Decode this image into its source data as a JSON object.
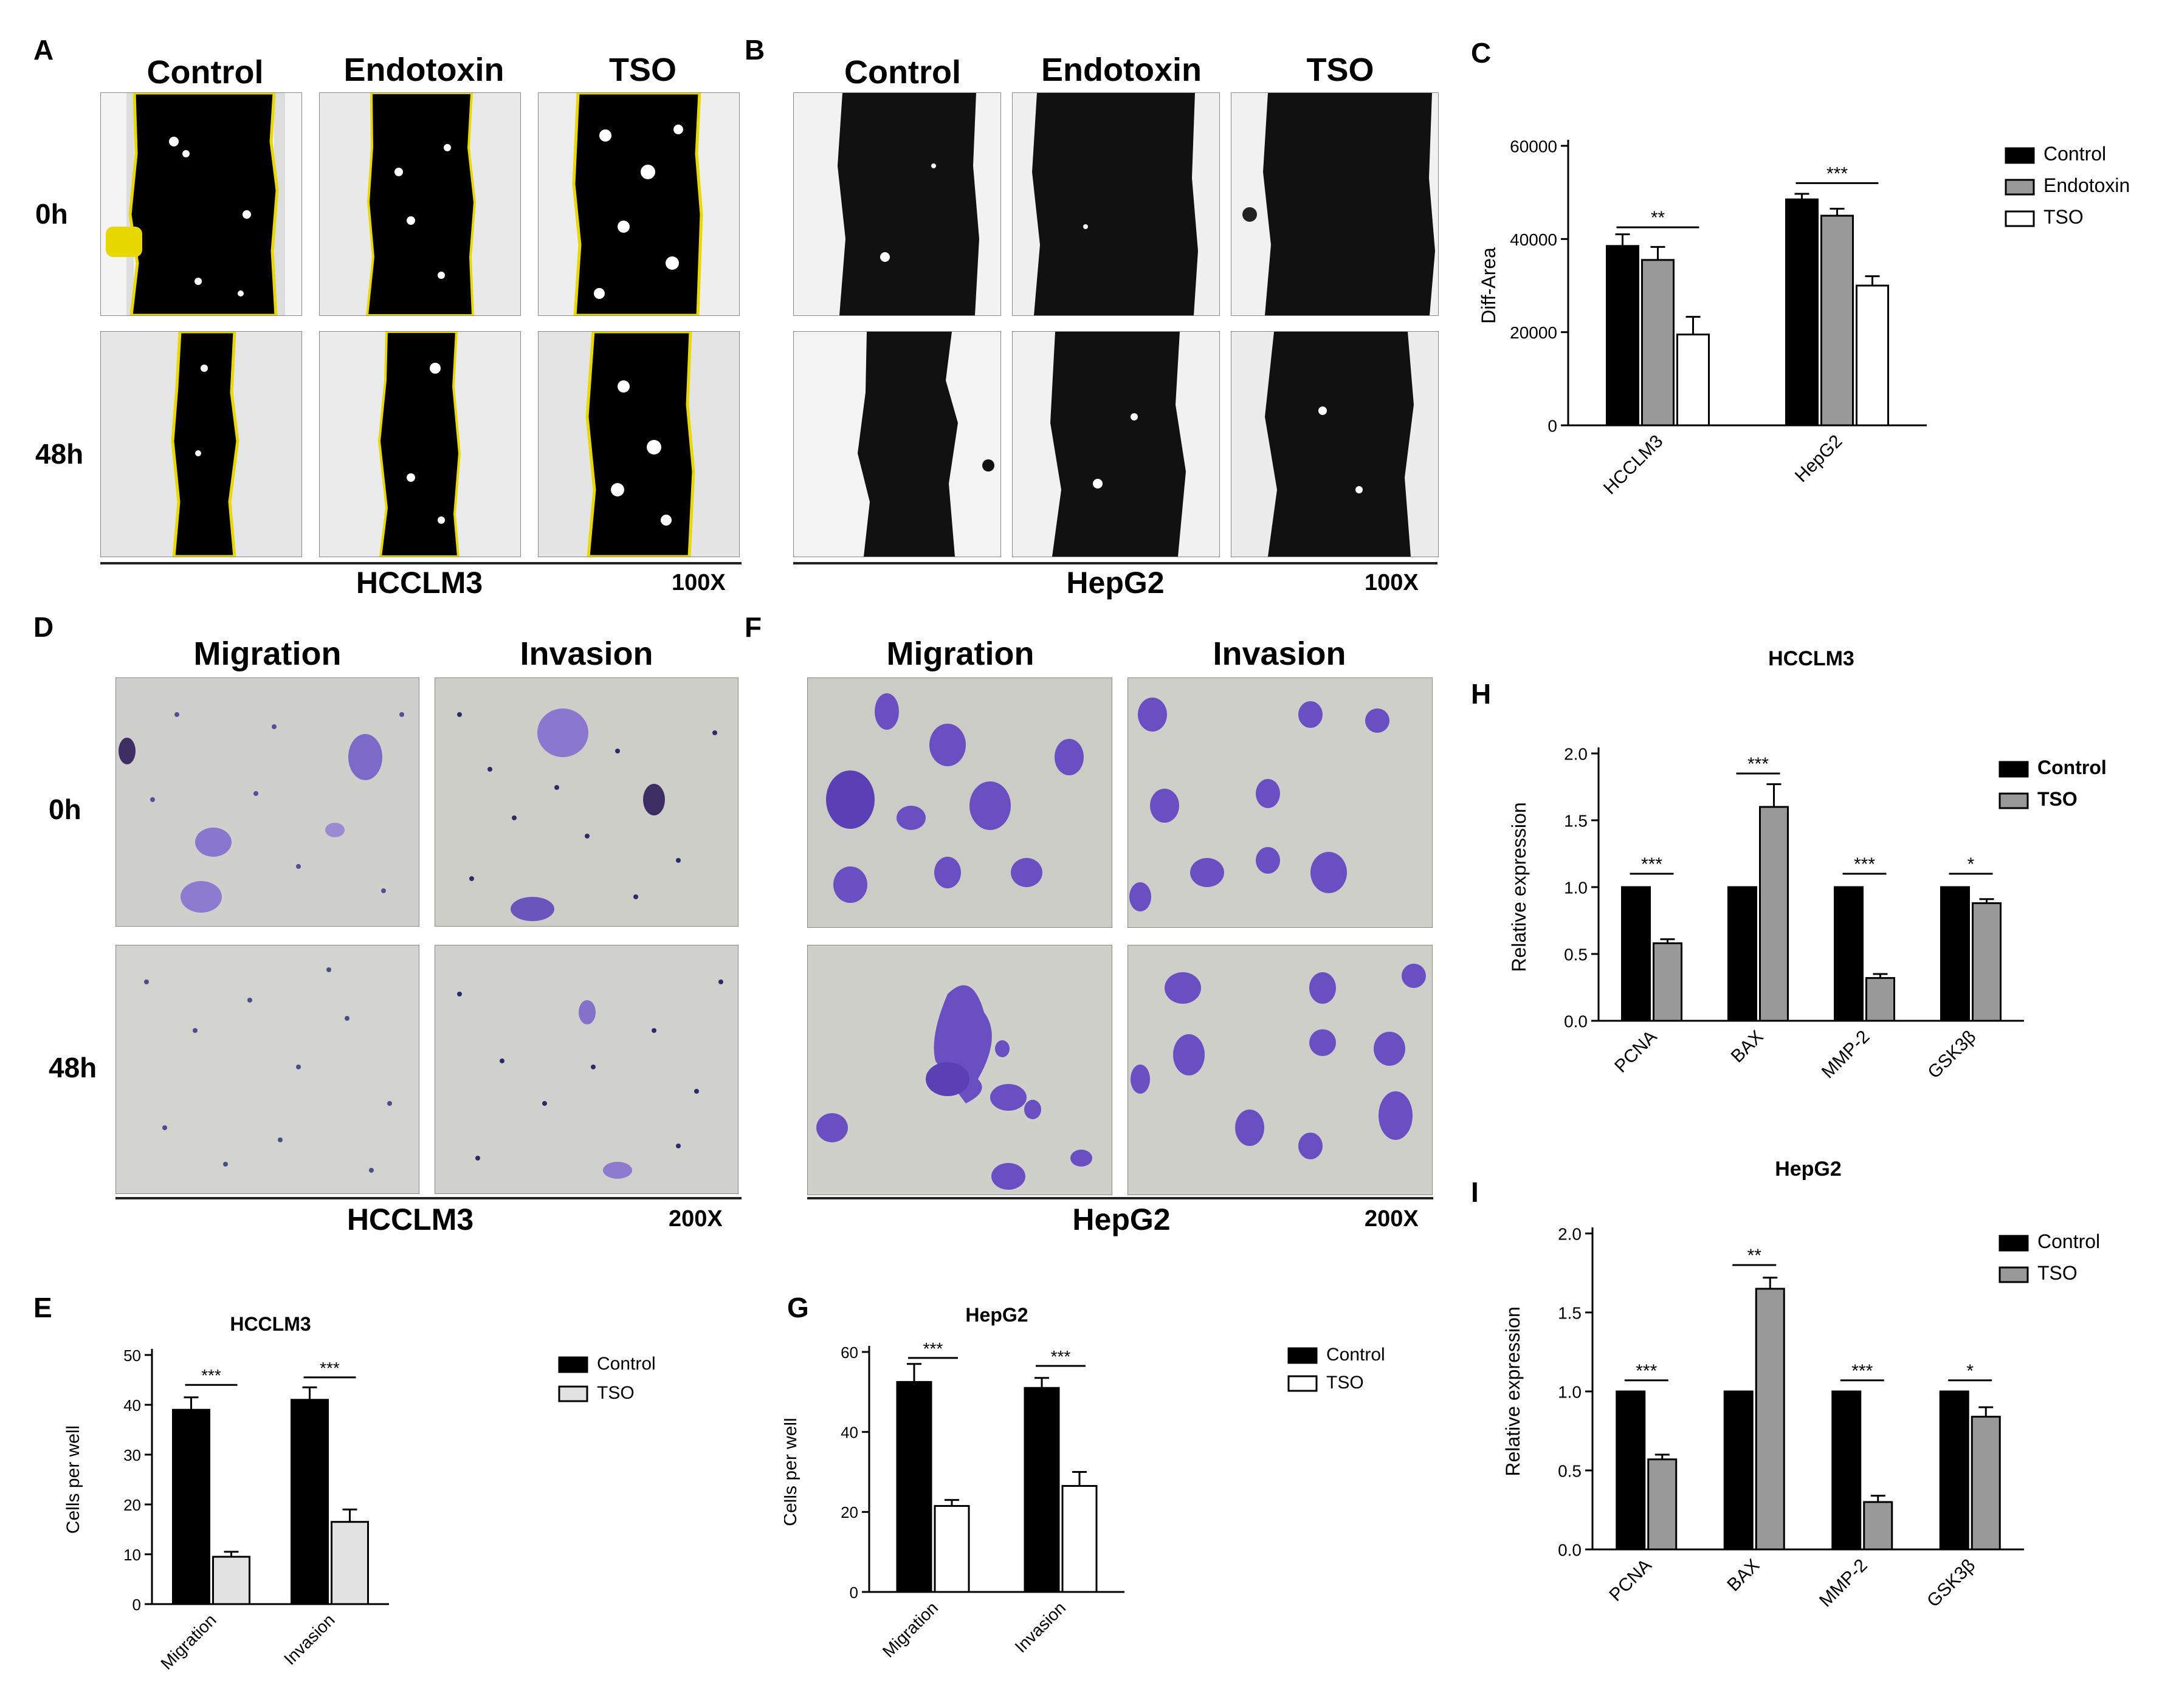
{
  "panels": {
    "A": {
      "letter": "A",
      "cols": [
        "Control",
        "Endotoxin",
        "TSO"
      ],
      "rows": [
        "0h",
        "48h"
      ],
      "cell": "HCCLM3",
      "mag": "100X"
    },
    "B": {
      "letter": "B",
      "cols": [
        "Control",
        "Endotoxin",
        "TSO"
      ],
      "cell": "HepG2",
      "mag": "100X"
    },
    "C": {
      "letter": "C"
    },
    "D": {
      "letter": "D",
      "cols": [
        "Migration",
        "Invasion"
      ],
      "rows": [
        "0h",
        "48h"
      ],
      "cell": "HCCLM3",
      "mag": "200X"
    },
    "F": {
      "letter": "F",
      "cols": [
        "Migration",
        "Invasion"
      ],
      "cell": "HepG2",
      "mag": "200X"
    },
    "E": {
      "letter": "E"
    },
    "G": {
      "letter": "G"
    },
    "H": {
      "letter": "H"
    },
    "I": {
      "letter": "I"
    }
  },
  "colors": {
    "control": "#000000",
    "grey": "#999999",
    "light": "#e2e2e2",
    "white": "#ffffff",
    "stain": "#6a4fc2",
    "wound": "#000000",
    "edge": "#e8d800"
  },
  "chart_data": [
    {
      "id": "C",
      "type": "bar",
      "title": "",
      "ylabel": "Diff-Area",
      "xlabel": "",
      "categories": [
        "HCCLM3",
        "HepG2"
      ],
      "yticks": [
        "0",
        "20000",
        "40000",
        "60000"
      ],
      "ylim": [
        0,
        60000
      ],
      "series": [
        {
          "name": "Control",
          "color": "#000000",
          "values": [
            38500,
            48500
          ],
          "errors": [
            2500,
            1200
          ]
        },
        {
          "name": "Endotoxin",
          "color": "#999999",
          "values": [
            35500,
            45000
          ],
          "errors": [
            2800,
            1500
          ]
        },
        {
          "name": "TSO",
          "color": "#ffffff",
          "values": [
            19500,
            30000
          ],
          "errors": [
            3800,
            2000
          ]
        }
      ],
      "significance": [
        {
          "label": "**",
          "cat": 0,
          "from": 0,
          "to": 2,
          "y": 42500
        },
        {
          "label": "***",
          "cat": 1,
          "from": 0,
          "to": 2,
          "y": 52000
        }
      ],
      "legend": "right"
    },
    {
      "id": "E",
      "type": "bar",
      "title": "HCCLM3",
      "ylabel": "Cells per well",
      "xlabel": "",
      "categories": [
        "Migration",
        "Invasion"
      ],
      "yticks": [
        "0",
        "10",
        "20",
        "30",
        "40",
        "50"
      ],
      "ylim": [
        0,
        50
      ],
      "series": [
        {
          "name": "Control",
          "color": "#000000",
          "values": [
            39,
            41
          ],
          "errors": [
            2.5,
            2.5
          ]
        },
        {
          "name": "TSO",
          "color": "#e2e2e2",
          "values": [
            9.5,
            16.5
          ],
          "errors": [
            1,
            2.5
          ]
        }
      ],
      "significance": [
        {
          "label": "***",
          "cat": 0,
          "from": 0,
          "to": 1,
          "y": 44
        },
        {
          "label": "***",
          "cat": 1,
          "from": 0,
          "to": 1,
          "y": 45.5
        }
      ],
      "legend": "right"
    },
    {
      "id": "G",
      "type": "bar",
      "title": "HepG2",
      "ylabel": "Cells per well",
      "xlabel": "",
      "categories": [
        "Migration",
        "Invasion"
      ],
      "yticks": [
        "0",
        "20",
        "40",
        "60"
      ],
      "ylim": [
        0,
        60
      ],
      "series": [
        {
          "name": "Control",
          "color": "#000000",
          "values": [
            52.5,
            51
          ],
          "errors": [
            4.5,
            2.5
          ]
        },
        {
          "name": "TSO",
          "color": "#ffffff",
          "values": [
            21.5,
            26.5
          ],
          "errors": [
            1.5,
            3.5
          ]
        }
      ],
      "significance": [
        {
          "label": "***",
          "cat": 0,
          "from": 0,
          "to": 1,
          "y": 58.5
        },
        {
          "label": "***",
          "cat": 1,
          "from": 0,
          "to": 1,
          "y": 56.5
        }
      ],
      "legend": "right"
    },
    {
      "id": "H",
      "type": "bar",
      "title": "HCCLM3",
      "ylabel": "Relative expression",
      "xlabel": "",
      "categories": [
        "PCNA",
        "BAX",
        "MMP-2",
        "GSK3β"
      ],
      "yticks": [
        "0.0",
        "0.5",
        "1.0",
        "1.5",
        "2.0"
      ],
      "ylim": [
        0,
        2.0
      ],
      "series": [
        {
          "name": "Control",
          "color": "#000000",
          "values": [
            1.0,
            1.0,
            1.0,
            1.0
          ],
          "errors": [
            0,
            0,
            0,
            0
          ]
        },
        {
          "name": "TSO",
          "color": "#999999",
          "values": [
            0.58,
            1.6,
            0.32,
            0.88
          ],
          "errors": [
            0.03,
            0.17,
            0.03,
            0.03
          ]
        }
      ],
      "significance": [
        {
          "label": "***",
          "cat": 0,
          "from": 0,
          "to": 1,
          "y": 1.1
        },
        {
          "label": "***",
          "cat": 1,
          "from": 0,
          "to": 1,
          "y": 1.85
        },
        {
          "label": "***",
          "cat": 2,
          "from": 0,
          "to": 1,
          "y": 1.1
        },
        {
          "label": "*",
          "cat": 3,
          "from": 0,
          "to": 1,
          "y": 1.1
        }
      ],
      "legend": "right",
      "bold_legend": true
    },
    {
      "id": "I",
      "type": "bar",
      "title": "HepG2",
      "ylabel": "Relative expression",
      "xlabel": "",
      "categories": [
        "PCNA",
        "BAX",
        "MMP-2",
        "GSK3β"
      ],
      "yticks": [
        "0.0",
        "0.5",
        "1.0",
        "1.5",
        "2.0"
      ],
      "ylim": [
        0,
        2.0
      ],
      "series": [
        {
          "name": "Control",
          "color": "#000000",
          "values": [
            1.0,
            1.0,
            1.0,
            1.0
          ],
          "errors": [
            0,
            0,
            0,
            0
          ]
        },
        {
          "name": "TSO",
          "color": "#999999",
          "values": [
            0.57,
            1.65,
            0.3,
            0.84
          ],
          "errors": [
            0.03,
            0.07,
            0.04,
            0.06
          ]
        }
      ],
      "significance": [
        {
          "label": "***",
          "cat": 0,
          "from": 0,
          "to": 1,
          "y": 1.07
        },
        {
          "label": "**",
          "cat": 1,
          "from": 0,
          "to": 1,
          "y": 1.8
        },
        {
          "label": "***",
          "cat": 2,
          "from": 0,
          "to": 1,
          "y": 1.07
        },
        {
          "label": "*",
          "cat": 3,
          "from": 0,
          "to": 1,
          "y": 1.07
        }
      ],
      "legend": "right"
    }
  ]
}
